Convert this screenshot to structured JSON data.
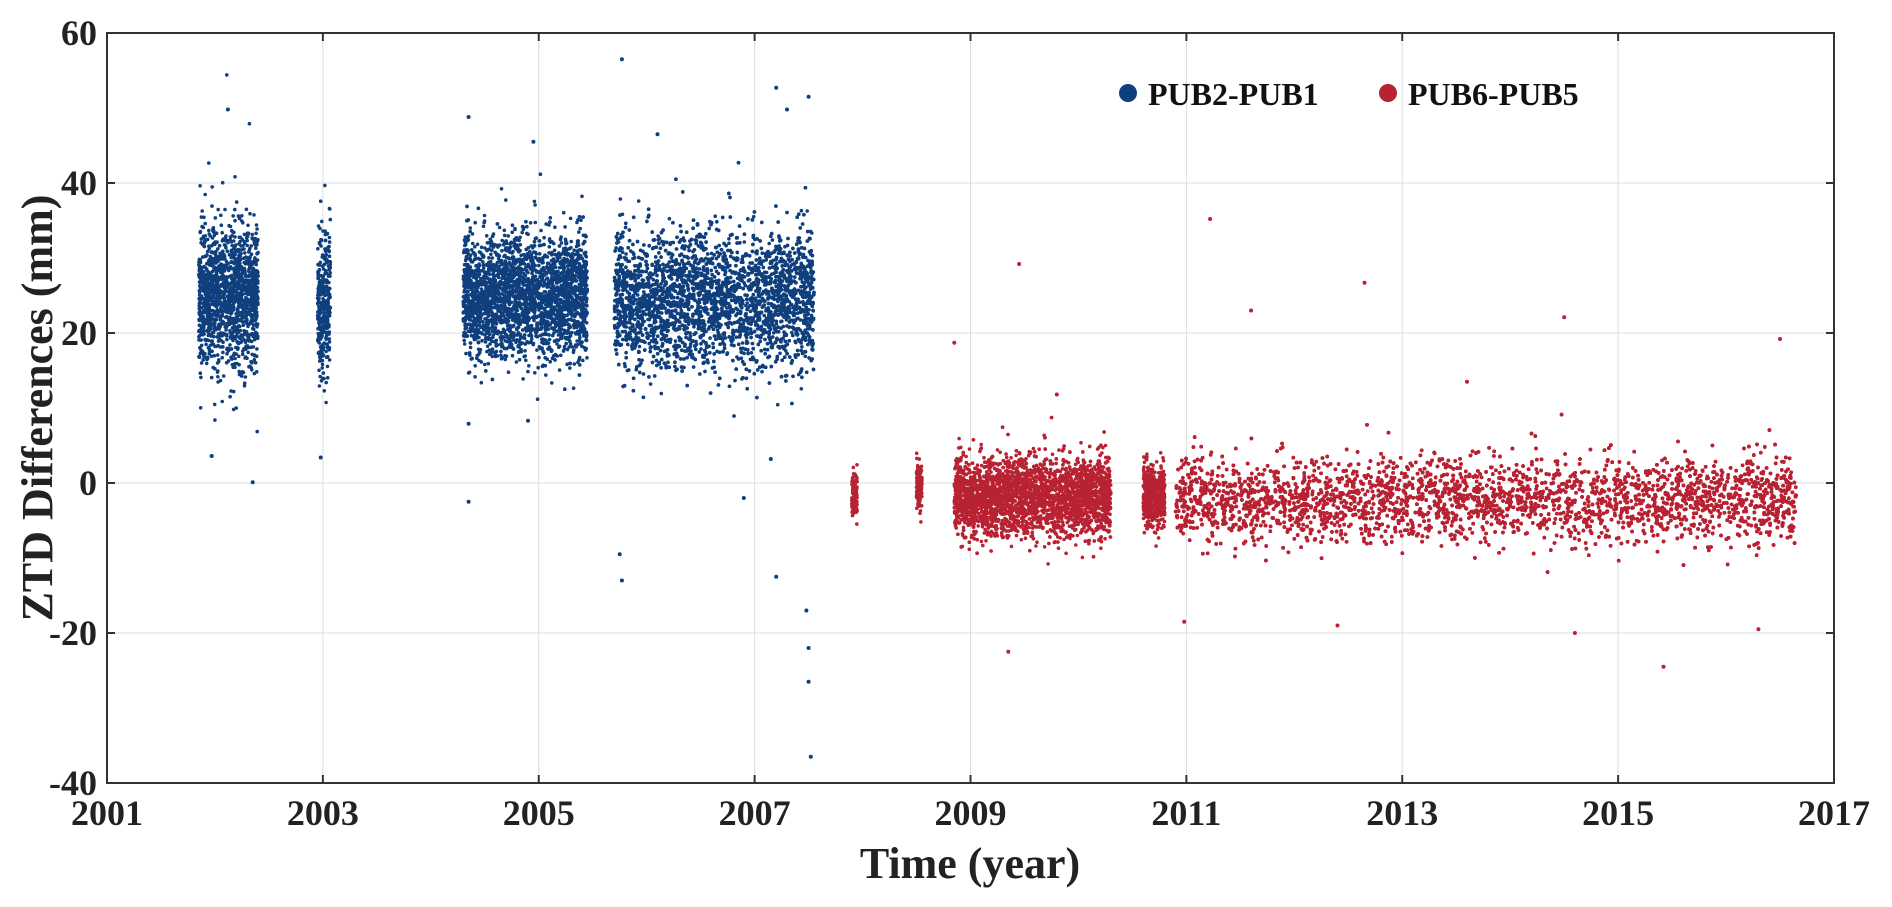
{
  "chart_data": {
    "type": "scatter",
    "xlabel": "Time (year)",
    "ylabel": "ZTD Differences (mm)",
    "xlim": [
      2001,
      2017
    ],
    "ylim": [
      -40,
      60
    ],
    "xticks": [
      "2001",
      "2003",
      "2005",
      "2007",
      "2009",
      "2011",
      "2013",
      "2015",
      "2017"
    ],
    "yticks": [
      "-40",
      "-20",
      "0",
      "20",
      "40",
      "60"
    ],
    "grid": true,
    "legend_position": "top-right",
    "series": [
      {
        "name": "PUB2-PUB1",
        "color": "#0f3f7d",
        "marker": "dot",
        "segments": [
          {
            "x_start": 2001.85,
            "x_end": 2002.4,
            "mean": 25,
            "spread": 4.5
          },
          {
            "x_start": 2002.95,
            "x_end": 2003.07,
            "mean": 24,
            "spread": 5
          },
          {
            "x_start": 2004.3,
            "x_end": 2005.45,
            "mean": 25,
            "spread": 4
          },
          {
            "x_start": 2005.7,
            "x_end": 2007.55,
            "mean": 24.5,
            "spread": 4.5
          }
        ],
        "outliers": [
          {
            "x": 2002.12,
            "y": 49.8
          },
          {
            "x": 2001.97,
            "y": 3.6
          },
          {
            "x": 2002.35,
            "y": 0.1
          },
          {
            "x": 2002.98,
            "y": 3.4
          },
          {
            "x": 2004.35,
            "y": 48.8
          },
          {
            "x": 2004.35,
            "y": -2.5
          },
          {
            "x": 2004.35,
            "y": 7.9
          },
          {
            "x": 2004.95,
            "y": 45.5
          },
          {
            "x": 2004.9,
            "y": 8.3
          },
          {
            "x": 2005.77,
            "y": 56.5
          },
          {
            "x": 2005.77,
            "y": -13.0
          },
          {
            "x": 2005.75,
            "y": -9.5
          },
          {
            "x": 2006.1,
            "y": 46.5
          },
          {
            "x": 2006.9,
            "y": -2.0
          },
          {
            "x": 2007.2,
            "y": 52.7
          },
          {
            "x": 2007.2,
            "y": -12.5
          },
          {
            "x": 2007.52,
            "y": -36.5
          },
          {
            "x": 2007.5,
            "y": -26.5
          },
          {
            "x": 2007.5,
            "y": -22.0
          },
          {
            "x": 2007.48,
            "y": -17.0
          },
          {
            "x": 2007.5,
            "y": 51.5
          },
          {
            "x": 2007.3,
            "y": 49.8
          },
          {
            "x": 2007.15,
            "y": 3.2
          }
        ]
      },
      {
        "name": "PUB6-PUB5",
        "color": "#b82232",
        "marker": "dot",
        "segments": [
          {
            "x_start": 2007.9,
            "x_end": 2007.95,
            "mean": -1.5,
            "spread": 1.5
          },
          {
            "x_start": 2008.5,
            "x_end": 2008.55,
            "mean": -0.5,
            "spread": 1.5
          },
          {
            "x_start": 2008.85,
            "x_end": 2010.3,
            "mean": -1.8,
            "spread": 2.6
          },
          {
            "x_start": 2010.6,
            "x_end": 2010.8,
            "mean": -1.5,
            "spread": 2.0
          },
          {
            "x_start": 2010.9,
            "x_end": 2016.65,
            "mean": -2.2,
            "spread": 2.8
          }
        ],
        "outliers": [
          {
            "x": 2011.22,
            "y": 35.2
          },
          {
            "x": 2009.45,
            "y": 29.2
          },
          {
            "x": 2012.65,
            "y": 26.7
          },
          {
            "x": 2011.6,
            "y": 23.0
          },
          {
            "x": 2014.5,
            "y": 22.1
          },
          {
            "x": 2015.42,
            "y": -24.5
          },
          {
            "x": 2009.35,
            "y": -22.5
          },
          {
            "x": 2014.6,
            "y": -20.0
          },
          {
            "x": 2016.3,
            "y": -19.5
          },
          {
            "x": 2016.5,
            "y": 19.2
          },
          {
            "x": 2008.85,
            "y": 18.7
          },
          {
            "x": 2012.4,
            "y": -19.0
          },
          {
            "x": 2010.98,
            "y": -18.5
          },
          {
            "x": 2013.6,
            "y": 13.5
          },
          {
            "x": 2009.8,
            "y": 11.8
          }
        ]
      }
    ]
  }
}
